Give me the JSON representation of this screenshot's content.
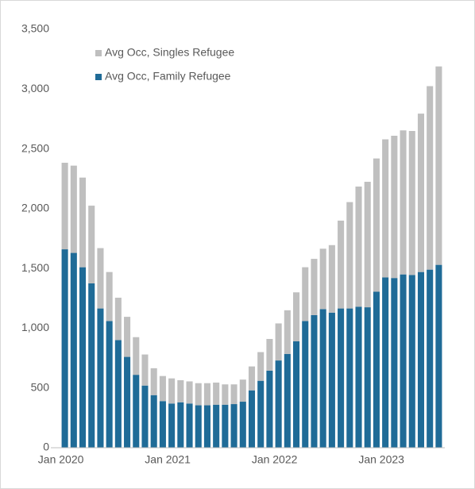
{
  "chart_data": {
    "type": "stacked_bar",
    "categories": [
      "Jan 2020",
      null,
      null,
      null,
      null,
      null,
      null,
      null,
      null,
      null,
      null,
      null,
      "Jan 2021",
      null,
      null,
      null,
      null,
      null,
      null,
      null,
      null,
      null,
      null,
      null,
      "Jan 2022",
      null,
      null,
      null,
      null,
      null,
      null,
      null,
      null,
      null,
      null,
      null,
      "Jan 2023",
      null,
      null,
      null,
      null,
      null,
      null
    ],
    "series": [
      {
        "name": "Avg Occ, Singles Refugee",
        "color": "#bfbfbf",
        "values": [
          724,
          730,
          750,
          650,
          505,
          410,
          355,
          335,
          315,
          260,
          225,
          210,
          210,
          185,
          185,
          185,
          185,
          185,
          170,
          165,
          185,
          200,
          240,
          265,
          310,
          365,
          410,
          450,
          470,
          505,
          565,
          735,
          890,
          1005,
          1050,
          1115,
          1155,
          1190,
          1205,
          1205,
          1325,
          1535,
          1660
        ]
      },
      {
        "name": "Avg Occ, Family Refugee",
        "color": "#1f6b97",
        "values": [
          1660,
          1630,
          1510,
          1375,
          1165,
          1060,
          900,
          760,
          610,
          520,
          440,
          390,
          370,
          380,
          370,
          355,
          355,
          360,
          360,
          365,
          385,
          480,
          560,
          645,
          730,
          785,
          890,
          1060,
          1110,
          1160,
          1130,
          1165,
          1165,
          1180,
          1175,
          1305,
          1425,
          1420,
          1450,
          1445,
          1470,
          1490,
          1530
        ]
      }
    ],
    "ylim": [
      0,
      3500
    ],
    "yticks": [
      0,
      {
        "value": 500,
        "label": "500"
      },
      {
        "value": 1000,
        "label": "1,000"
      },
      {
        "value": 1500,
        "label": "1,500"
      },
      {
        "value": 2000,
        "label": "2,000"
      },
      {
        "value": 2500,
        "label": "2,500"
      },
      {
        "value": 3000,
        "label": "3,000"
      },
      {
        "value": 3500,
        "label": "3,500"
      }
    ],
    "grid": false,
    "legend": "upper left"
  }
}
